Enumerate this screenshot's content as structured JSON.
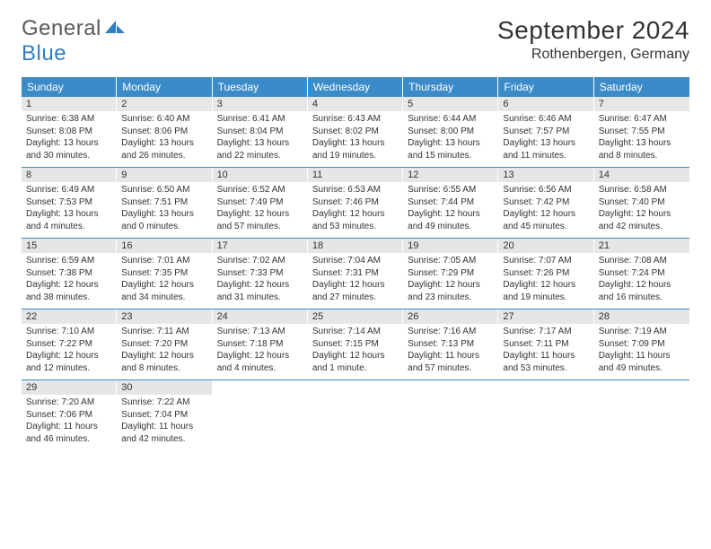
{
  "logo": {
    "text1": "General",
    "text2": "Blue"
  },
  "title": "September 2024",
  "location": "Rothenbergen, Germany",
  "colors": {
    "header_bg": "#3b8bc9",
    "header_text": "#ffffff",
    "daynum_bg": "#e6e6e6",
    "text": "#333333",
    "row_border": "#3b8bc9",
    "logo_gray": "#5a5a5a",
    "logo_blue": "#2f7fc2"
  },
  "weekdays": [
    "Sunday",
    "Monday",
    "Tuesday",
    "Wednesday",
    "Thursday",
    "Friday",
    "Saturday"
  ],
  "days": [
    {
      "n": "1",
      "sunrise": "6:38 AM",
      "sunset": "8:08 PM",
      "daylight": "13 hours and 30 minutes."
    },
    {
      "n": "2",
      "sunrise": "6:40 AM",
      "sunset": "8:06 PM",
      "daylight": "13 hours and 26 minutes."
    },
    {
      "n": "3",
      "sunrise": "6:41 AM",
      "sunset": "8:04 PM",
      "daylight": "13 hours and 22 minutes."
    },
    {
      "n": "4",
      "sunrise": "6:43 AM",
      "sunset": "8:02 PM",
      "daylight": "13 hours and 19 minutes."
    },
    {
      "n": "5",
      "sunrise": "6:44 AM",
      "sunset": "8:00 PM",
      "daylight": "13 hours and 15 minutes."
    },
    {
      "n": "6",
      "sunrise": "6:46 AM",
      "sunset": "7:57 PM",
      "daylight": "13 hours and 11 minutes."
    },
    {
      "n": "7",
      "sunrise": "6:47 AM",
      "sunset": "7:55 PM",
      "daylight": "13 hours and 8 minutes."
    },
    {
      "n": "8",
      "sunrise": "6:49 AM",
      "sunset": "7:53 PM",
      "daylight": "13 hours and 4 minutes."
    },
    {
      "n": "9",
      "sunrise": "6:50 AM",
      "sunset": "7:51 PM",
      "daylight": "13 hours and 0 minutes."
    },
    {
      "n": "10",
      "sunrise": "6:52 AM",
      "sunset": "7:49 PM",
      "daylight": "12 hours and 57 minutes."
    },
    {
      "n": "11",
      "sunrise": "6:53 AM",
      "sunset": "7:46 PM",
      "daylight": "12 hours and 53 minutes."
    },
    {
      "n": "12",
      "sunrise": "6:55 AM",
      "sunset": "7:44 PM",
      "daylight": "12 hours and 49 minutes."
    },
    {
      "n": "13",
      "sunrise": "6:56 AM",
      "sunset": "7:42 PM",
      "daylight": "12 hours and 45 minutes."
    },
    {
      "n": "14",
      "sunrise": "6:58 AM",
      "sunset": "7:40 PM",
      "daylight": "12 hours and 42 minutes."
    },
    {
      "n": "15",
      "sunrise": "6:59 AM",
      "sunset": "7:38 PM",
      "daylight": "12 hours and 38 minutes."
    },
    {
      "n": "16",
      "sunrise": "7:01 AM",
      "sunset": "7:35 PM",
      "daylight": "12 hours and 34 minutes."
    },
    {
      "n": "17",
      "sunrise": "7:02 AM",
      "sunset": "7:33 PM",
      "daylight": "12 hours and 31 minutes."
    },
    {
      "n": "18",
      "sunrise": "7:04 AM",
      "sunset": "7:31 PM",
      "daylight": "12 hours and 27 minutes."
    },
    {
      "n": "19",
      "sunrise": "7:05 AM",
      "sunset": "7:29 PM",
      "daylight": "12 hours and 23 minutes."
    },
    {
      "n": "20",
      "sunrise": "7:07 AM",
      "sunset": "7:26 PM",
      "daylight": "12 hours and 19 minutes."
    },
    {
      "n": "21",
      "sunrise": "7:08 AM",
      "sunset": "7:24 PM",
      "daylight": "12 hours and 16 minutes."
    },
    {
      "n": "22",
      "sunrise": "7:10 AM",
      "sunset": "7:22 PM",
      "daylight": "12 hours and 12 minutes."
    },
    {
      "n": "23",
      "sunrise": "7:11 AM",
      "sunset": "7:20 PM",
      "daylight": "12 hours and 8 minutes."
    },
    {
      "n": "24",
      "sunrise": "7:13 AM",
      "sunset": "7:18 PM",
      "daylight": "12 hours and 4 minutes."
    },
    {
      "n": "25",
      "sunrise": "7:14 AM",
      "sunset": "7:15 PM",
      "daylight": "12 hours and 1 minute."
    },
    {
      "n": "26",
      "sunrise": "7:16 AM",
      "sunset": "7:13 PM",
      "daylight": "11 hours and 57 minutes."
    },
    {
      "n": "27",
      "sunrise": "7:17 AM",
      "sunset": "7:11 PM",
      "daylight": "11 hours and 53 minutes."
    },
    {
      "n": "28",
      "sunrise": "7:19 AM",
      "sunset": "7:09 PM",
      "daylight": "11 hours and 49 minutes."
    },
    {
      "n": "29",
      "sunrise": "7:20 AM",
      "sunset": "7:06 PM",
      "daylight": "11 hours and 46 minutes."
    },
    {
      "n": "30",
      "sunrise": "7:22 AM",
      "sunset": "7:04 PM",
      "daylight": "11 hours and 42 minutes."
    }
  ],
  "labels": {
    "sunrise_prefix": "Sunrise: ",
    "sunset_prefix": "Sunset: ",
    "daylight_prefix": "Daylight: "
  },
  "layout": {
    "columns": 7,
    "rows": 5,
    "trailing_empty": 5
  }
}
